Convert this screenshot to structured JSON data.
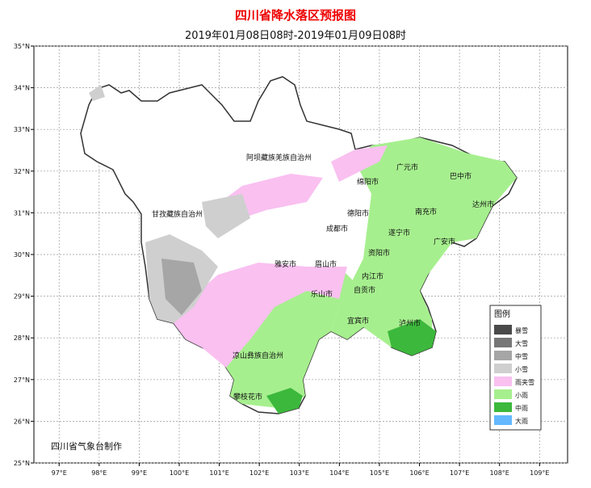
{
  "header": {
    "title": "四川省降水落区预报图",
    "subtitle": "2019年01月08日08时-2019年01月09日08时"
  },
  "map": {
    "lon_ticks": [
      {
        "value": 97,
        "label": "97°E"
      },
      {
        "value": 98,
        "label": "98°E"
      },
      {
        "value": 99,
        "label": "99°E"
      },
      {
        "value": 100,
        "label": "100°E"
      },
      {
        "value": 101,
        "label": "101°E"
      },
      {
        "value": 102,
        "label": "102°E"
      },
      {
        "value": 103,
        "label": "103°E"
      },
      {
        "value": 104,
        "label": "104°E"
      },
      {
        "value": 105,
        "label": "105°E"
      },
      {
        "value": 106,
        "label": "106°E"
      },
      {
        "value": 107,
        "label": "107°E"
      },
      {
        "value": 108,
        "label": "108°E"
      },
      {
        "value": 109,
        "label": "109°E"
      }
    ],
    "lat_ticks": [
      {
        "value": 25,
        "label": "25°N"
      },
      {
        "value": 26,
        "label": "26°N"
      },
      {
        "value": 27,
        "label": "27°N"
      },
      {
        "value": 28,
        "label": "28°N"
      },
      {
        "value": 29,
        "label": "29°N"
      },
      {
        "value": 30,
        "label": "30°N"
      },
      {
        "value": 31,
        "label": "31°N"
      },
      {
        "value": 32,
        "label": "32°N"
      },
      {
        "value": 33,
        "label": "33°N"
      },
      {
        "value": 34,
        "label": "34°N"
      },
      {
        "value": 35,
        "label": "35°N"
      }
    ],
    "lon_range": [
      96.37,
      109.7
    ],
    "lat_range": [
      25,
      35
    ],
    "cities": [
      "阿坝藏族羌族自治州",
      "甘孜藏族自治州",
      "广元市",
      "巴中市",
      "绵阳市",
      "德阳市",
      "南充市",
      "达州市",
      "成都市",
      "遂宁市",
      "广安市",
      "资阳市",
      "雅安市",
      "眉山市",
      "内江市",
      "乐山市",
      "自贡市",
      "宜宾市",
      "泸州市",
      "凉山彝族自治州",
      "攀枝花市"
    ],
    "credit": "四川省气象台制作"
  },
  "legend": {
    "title": "图例",
    "items": [
      {
        "label": "暴雪",
        "color": "#4a4a4a"
      },
      {
        "label": "大雪",
        "color": "#777777"
      },
      {
        "label": "中雪",
        "color": "#a6a6a6"
      },
      {
        "label": "小雪",
        "color": "#cfcfcf"
      },
      {
        "label": "雨夹雪",
        "color": "#f9c0f0"
      },
      {
        "label": "小雨",
        "color": "#a6ef8e"
      },
      {
        "label": "中雨",
        "color": "#3cb83c"
      },
      {
        "label": "大雨",
        "color": "#63b8ff"
      }
    ]
  }
}
